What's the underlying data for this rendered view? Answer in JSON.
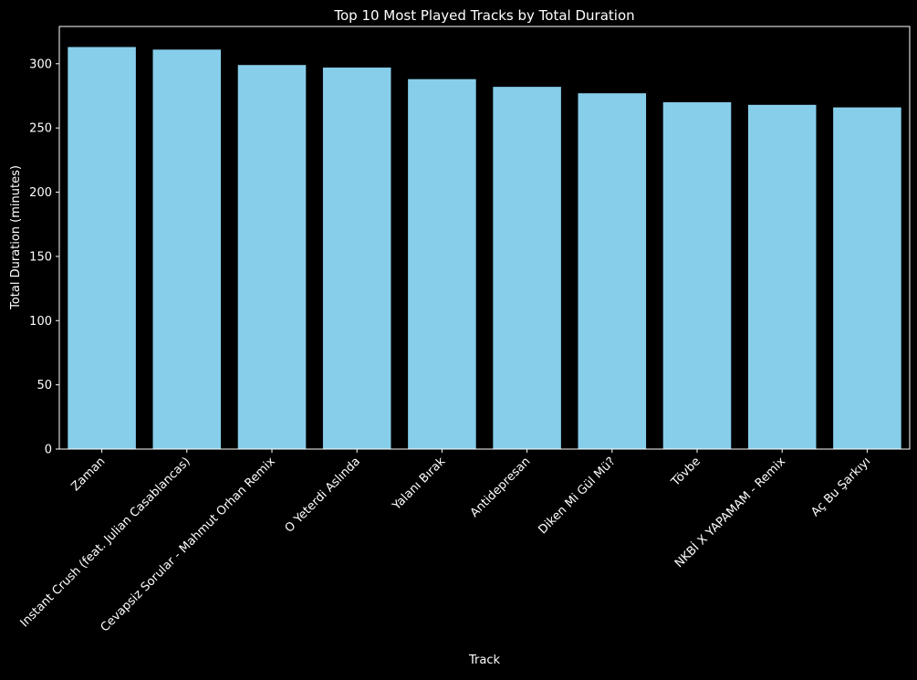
{
  "chart_data": {
    "type": "bar",
    "title": "Top 10 Most Played Tracks by Total Duration",
    "xlabel": "Track",
    "ylabel": "Total Duration (minutes)",
    "categories": [
      "Zaman",
      "Instant Crush (feat. Julian Casablancas)",
      "Cevapsiz Sorular - Mahmut Orhan Remix",
      "O Yeterdi Aslında",
      "Yalanı Bırak",
      "Antidepresan",
      "Diken Mi Gül Mü?",
      "Tövbe",
      "NKBİ X YAPAMAM - Remix",
      "Aç Bu Şarkıyı"
    ],
    "values": [
      313,
      311,
      299,
      297,
      288,
      282,
      277,
      270,
      268,
      266
    ],
    "ylim": [
      0,
      329
    ],
    "yticks": [
      0,
      50,
      100,
      150,
      200,
      250,
      300
    ],
    "grid": false,
    "colors": {
      "background": "#000000",
      "bar": "#87ceeb",
      "axis": "#ffffff",
      "text": "#ffffff"
    }
  }
}
